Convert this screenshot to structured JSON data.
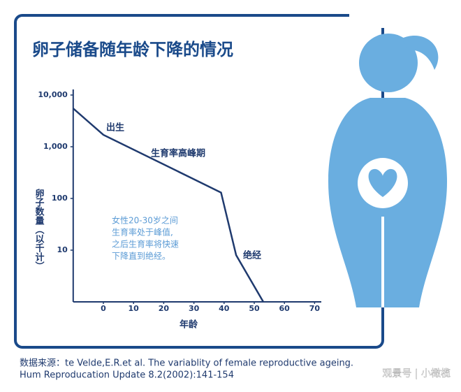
{
  "chart_data": {
    "type": "line",
    "title": "卵子储备随年龄下降的情况",
    "y_label": "卵子数量（以千计）",
    "x_label": "年龄",
    "x": [
      -10,
      0,
      39,
      44,
      53
    ],
    "values": [
      5500,
      1700,
      130,
      8,
      1
    ],
    "color": "#1f3a6e",
    "xlim": [
      -10,
      70
    ],
    "xticks": [
      0,
      10,
      20,
      30,
      40,
      50,
      60,
      70
    ],
    "ylim": [
      1,
      10000
    ],
    "yscale": "log",
    "yticks": [
      {
        "value": 10000,
        "label": "10,000"
      },
      {
        "value": 1000,
        "label": "1,000"
      },
      100,
      10
    ],
    "annotations": [
      "出生",
      "生育率高峰期",
      "绝经"
    ],
    "note": [
      "女性20-30岁之间",
      "生育率处于峰值,",
      "之后生育率将快速",
      "下降直到绝经。"
    ],
    "source": [
      "数据来源：te Velde,E.R.et al. The variablity of female reproductive ageing.",
      "Hum Reproducation Update 8.2(2002):141-154"
    ],
    "watermark": "观景号 | 小橄榄"
  }
}
